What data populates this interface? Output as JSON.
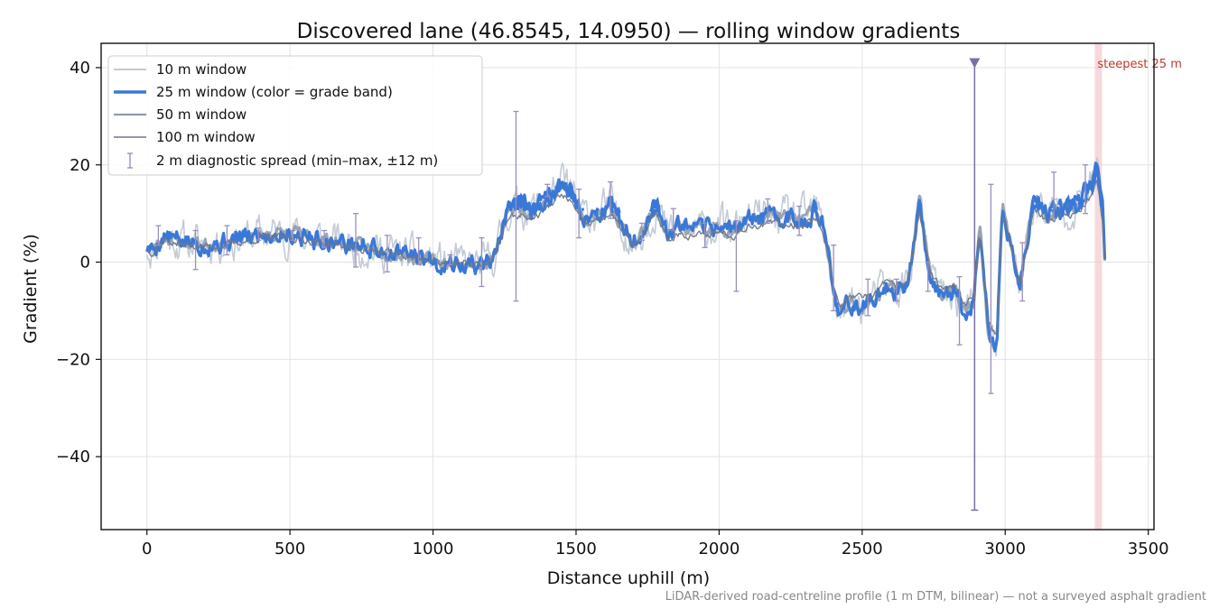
{
  "chart_data": {
    "type": "line",
    "title": "Discovered lane (46.8545, 14.0950) — rolling window gradients",
    "xlabel": "Distance uphill (m)",
    "ylabel": "Gradient (%)",
    "xlim": [
      -160,
      3520
    ],
    "ylim": [
      -55,
      45
    ],
    "xticks": [
      0,
      500,
      1000,
      1500,
      2000,
      2500,
      3000,
      3500
    ],
    "yticks": [
      -40,
      -20,
      0,
      20,
      40
    ],
    "grid": true,
    "legend_placement": "top-left",
    "footnote": "LiDAR-derived road-centreline profile (1 m DTM, bilinear) — not a surveyed asphalt gradient",
    "colors": {
      "w10": "#b9c2cf",
      "w25": "#3a78d8",
      "w50": "#8f9cae",
      "w100": "#6e7788",
      "errorbar": "#9a8fbf",
      "marker": "#7b6ea6",
      "steep_band": "#f4c9cc",
      "steep_label": "#c0392b"
    },
    "steepest": {
      "label": "steepest 25 m",
      "x_start": 3313,
      "x_end": 3338
    },
    "marker": {
      "x": 2893,
      "y": 41,
      "line_low": -51,
      "line_high": 41
    },
    "profile": {
      "x": [
        0,
        20,
        60,
        100,
        150,
        200,
        260,
        300,
        400,
        500,
        600,
        700,
        800,
        900,
        1000,
        1100,
        1180,
        1220,
        1260,
        1300,
        1340,
        1380,
        1420,
        1450,
        1480,
        1510,
        1540,
        1580,
        1620,
        1660,
        1700,
        1740,
        1780,
        1820,
        1860,
        1900,
        1950,
        2000,
        2050,
        2100,
        2150,
        2200,
        2250,
        2300,
        2340,
        2360,
        2380,
        2400,
        2420,
        2460,
        2500,
        2540,
        2580,
        2620,
        2660,
        2700,
        2740,
        2780,
        2820,
        2860,
        2890,
        2910,
        2940,
        2970,
        2990,
        3020,
        3050,
        3080,
        3100,
        3150,
        3200,
        3260,
        3300,
        3320,
        3340,
        3350
      ],
      "y": [
        3,
        2.5,
        5.5,
        4.5,
        4,
        3.8,
        4,
        4.5,
        5.8,
        6,
        4.8,
        3.8,
        2.6,
        1.5,
        0.3,
        -0.5,
        -0.6,
        2,
        10.5,
        11.5,
        10.5,
        12,
        14.5,
        16,
        15,
        10.5,
        9,
        10.5,
        11.5,
        8,
        3.5,
        7,
        12,
        5.5,
        7,
        6.5,
        6.5,
        7.5,
        6.5,
        9,
        9,
        9.5,
        9,
        9,
        11,
        7.5,
        2,
        -6,
        -11,
        -8.5,
        -9,
        -8,
        -5,
        -6,
        -4,
        12,
        -3,
        -7,
        -6,
        -10,
        -8,
        8,
        -14,
        -18,
        12,
        4,
        -5,
        6,
        12.5,
        10,
        11,
        12,
        16,
        19,
        10,
        -2
      ]
    },
    "errorbars": {
      "x": [
        40,
        170,
        280,
        390,
        510,
        620,
        730,
        840,
        950,
        1060,
        1170,
        1290,
        1400,
        1510,
        1620,
        1730,
        1840,
        1950,
        2060,
        2170,
        2280,
        2400,
        2520,
        2620,
        2730,
        2840,
        2950,
        3060,
        3170,
        3280
      ],
      "y": [
        5,
        3.5,
        4.5,
        5.5,
        5.5,
        4.5,
        4.5,
        3,
        2,
        0.5,
        0.5,
        11,
        15,
        9.5,
        11.5,
        6.5,
        9,
        5,
        6.5,
        9,
        9,
        -5.5,
        -8.5,
        -6,
        -3,
        -8,
        -5,
        -5,
        10.5,
        12
      ],
      "low": [
        3.5,
        -1.5,
        1.5,
        4.5,
        4.5,
        3,
        -1,
        -2,
        -0.5,
        -0.5,
        -5,
        -8,
        13.5,
        5,
        9,
        4.5,
        6.5,
        3,
        -6,
        8,
        5.5,
        -10,
        -11,
        -8,
        -6,
        -17,
        -27,
        -8,
        9,
        10
      ],
      "high": [
        7.5,
        6.5,
        7.5,
        7,
        6.5,
        6.5,
        10,
        5.5,
        5,
        1.5,
        5,
        31,
        16,
        15,
        16.5,
        8,
        11,
        8,
        8.5,
        13,
        11.5,
        3.5,
        -3.5,
        -3.5,
        0,
        -3,
        16,
        4,
        18.5,
        20
      ]
    },
    "series": [
      {
        "name": "10 m window",
        "color": "#b9c2cf",
        "noise": 3.0,
        "seed": 11
      },
      {
        "name": "25 m window (color = grade band)",
        "color": "#3a78d8",
        "noise": 1.6,
        "seed": 5
      },
      {
        "name": "50 m window",
        "color": "#8f9cae",
        "noise": 1.1,
        "seed": 23
      },
      {
        "name": "100 m window",
        "color": "#6e7788",
        "noise": 0.6,
        "seed": 37
      },
      {
        "name": "2 m diagnostic spread (min–max, ±12 m)",
        "color": "#9a8fbf"
      }
    ]
  }
}
